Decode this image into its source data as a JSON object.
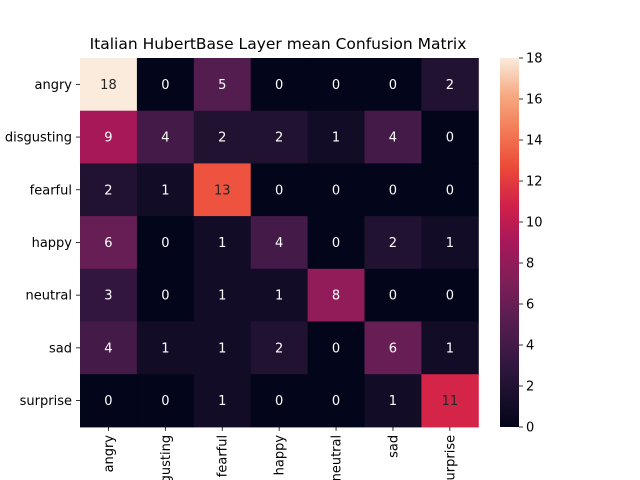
{
  "chart_data": {
    "type": "heatmap",
    "title": "Italian HubertBase Layer mean Confusion Matrix",
    "row_labels": [
      "angry",
      "disgusting",
      "fearful",
      "happy",
      "neutral",
      "sad",
      "surprise"
    ],
    "col_labels": [
      "angry",
      "disgusting",
      "fearful",
      "happy",
      "neutral",
      "sad",
      "surprise"
    ],
    "values": [
      [
        18,
        0,
        5,
        0,
        0,
        0,
        2
      ],
      [
        9,
        4,
        2,
        2,
        1,
        4,
        0
      ],
      [
        2,
        1,
        13,
        0,
        0,
        0,
        0
      ],
      [
        6,
        0,
        1,
        4,
        0,
        2,
        1
      ],
      [
        3,
        0,
        1,
        1,
        8,
        0,
        0
      ],
      [
        4,
        1,
        1,
        2,
        0,
        6,
        1
      ],
      [
        0,
        0,
        1,
        0,
        0,
        1,
        11
      ]
    ],
    "colorbar": {
      "min": 0,
      "max": 18,
      "ticks": [
        0,
        2,
        4,
        6,
        8,
        10,
        12,
        14,
        16,
        18
      ]
    },
    "colormap": "rocket"
  }
}
